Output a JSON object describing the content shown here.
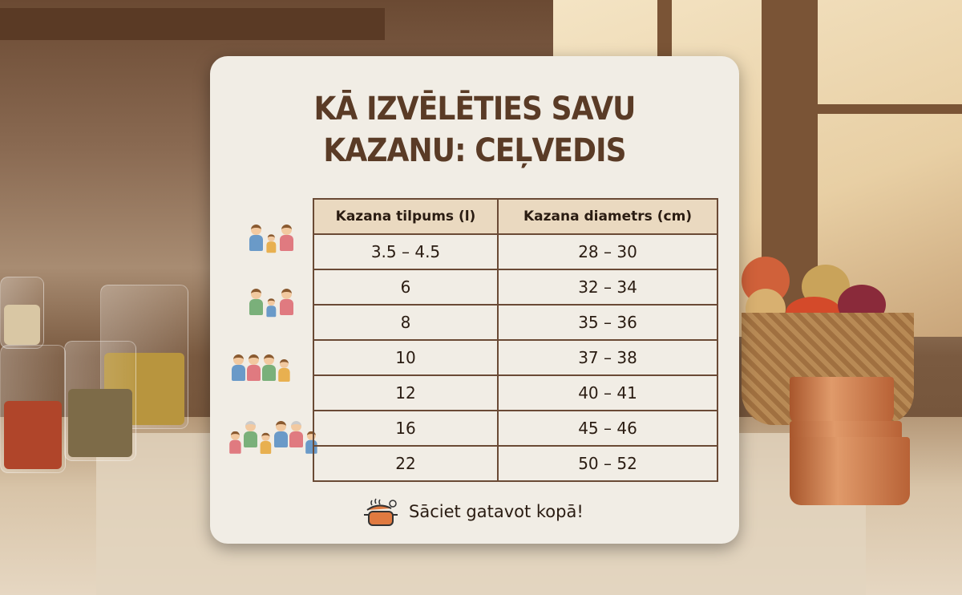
{
  "sign": {
    "title_line1": "KĀ IZVĒLĒTIES SAVU",
    "title_line2": "KAZANU: CEĻVEDIS",
    "table": {
      "headers": [
        "Kazana tilpums (l)",
        "Kazana diametrs (cm)"
      ],
      "rows": [
        [
          "3.5 – 4.5",
          "28 – 30"
        ],
        [
          "6",
          "32 – 34"
        ],
        [
          "8",
          "35 – 36"
        ],
        [
          "10",
          "37 – 38"
        ],
        [
          "12",
          "40 – 41"
        ],
        [
          "16",
          "45 – 46"
        ],
        [
          "22",
          "50 – 52"
        ]
      ]
    },
    "footer_text": "Sāciet gatavot kopā!",
    "footer_icon": "cooking-pot-icon"
  },
  "colors": {
    "title": "#5a3b26",
    "table_border": "#6a4a35",
    "header_bg": "#ead9c0",
    "pot": "#e07a40"
  }
}
